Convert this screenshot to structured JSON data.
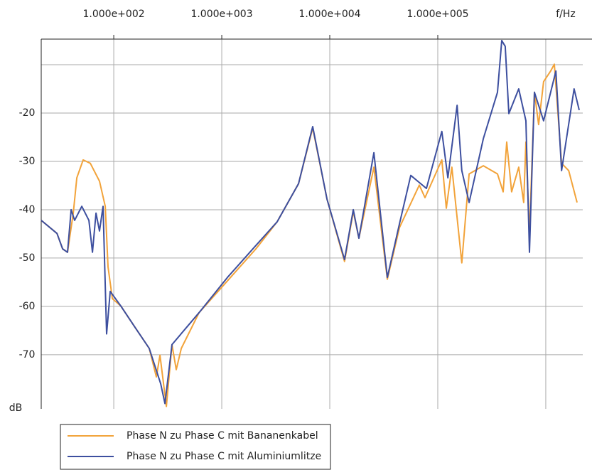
{
  "chart_data": {
    "type": "line",
    "xlabel": "f/Hz",
    "ylabel": "dB",
    "xscale": "log",
    "xlim": [
      21.3,
      2200000
    ],
    "ylim": [
      -81.2,
      -4.7
    ],
    "xticks": [
      {
        "value": 100,
        "label": "1.000e+002"
      },
      {
        "value": 1000,
        "label": "1.000e+003"
      },
      {
        "value": 10000,
        "label": "1.000e+004"
      },
      {
        "value": 100000,
        "label": "1.000e+005"
      }
    ],
    "xgrid": [
      1000000
    ],
    "yticks": [
      -70,
      -60,
      -50,
      -40,
      -30,
      -20
    ],
    "ygrid": [
      -10
    ],
    "grid": true,
    "series": [
      {
        "name": "Phase N zu Phase C mit Bananenkabel",
        "color": "#f2a33a",
        "x": [
          21.3,
          29.8,
          33.6,
          37.3,
          42.2,
          45.5,
          52.1,
          60.7,
          73.8,
          83.4,
          88.5,
          97.0,
          116,
          157,
          213,
          248,
          268,
          307,
          346,
          379,
          422,
          616,
          1130,
          2070,
          3260,
          5140,
          6950,
          9420,
          13700,
          16500,
          18600,
          25600,
          34100,
          44200,
          67500,
          76200,
          109000,
          120000,
          135000,
          167000,
          195000,
          264000,
          357000,
          403000,
          435000,
          483000,
          562000,
          625000,
          655000,
          706000,
          785000,
          859000,
          955000,
          1110000,
          1200000,
          1400000,
          1630000,
          1950000
        ],
        "values": [
          -42.2,
          -44.9,
          -48.1,
          -48.8,
          -40.7,
          -33.4,
          -29.7,
          -30.4,
          -34.1,
          -39.3,
          -51.8,
          -58.4,
          -59.9,
          -64.3,
          -68.7,
          -74.6,
          -70.1,
          -80.7,
          -67.9,
          -73.1,
          -68.7,
          -61.3,
          -54.7,
          -48.1,
          -42.5,
          -34.6,
          -23.1,
          -37.8,
          -50.7,
          -40.4,
          -45.9,
          -31.2,
          -54.4,
          -43.7,
          -34.9,
          -37.5,
          -29.7,
          -39.7,
          -31.2,
          -51.0,
          -32.6,
          -30.9,
          -32.6,
          -36.3,
          -26.0,
          -36.3,
          -31.2,
          -38.5,
          -26.0,
          -45.1,
          -15.7,
          -22.4,
          -13.5,
          -11.3,
          -9.9,
          -30.4,
          -31.9,
          -38.5
        ]
      },
      {
        "name": "Phase N zu Phase C mit Aluminiumlitze",
        "color": "#3d4f9f",
        "x": [
          21.3,
          29.8,
          33.6,
          37.3,
          40.3,
          43.4,
          50.6,
          58.9,
          63.5,
          68.5,
          73.8,
          79.6,
          85.9,
          92.7,
          116,
          157,
          213,
          272,
          298,
          346,
          616,
          1130,
          2070,
          3260,
          5140,
          6950,
          9420,
          13700,
          16500,
          18600,
          25600,
          34100,
          44200,
          56200,
          78500,
          109000,
          124000,
          151000,
          167000,
          195000,
          264000,
          357000,
          391000,
          421000,
          455000,
          562000,
          655000,
          706000,
          785000,
          955000,
          1240000,
          1400000,
          1830000,
          2040000
        ],
        "values": [
          -42.2,
          -44.9,
          -48.1,
          -48.8,
          -40.0,
          -42.2,
          -39.3,
          -42.2,
          -48.8,
          -40.7,
          -44.4,
          -39.3,
          -65.7,
          -56.9,
          -59.9,
          -64.3,
          -68.7,
          -76.0,
          -80.1,
          -67.9,
          -61.3,
          -54.0,
          -47.4,
          -42.5,
          -34.6,
          -22.8,
          -37.8,
          -50.3,
          -40.0,
          -45.9,
          -28.2,
          -54.0,
          -42.9,
          -32.9,
          -35.6,
          -23.8,
          -33.4,
          -18.4,
          -31.9,
          -38.5,
          -25.3,
          -15.7,
          -5.0,
          -6.2,
          -20.1,
          -15.0,
          -21.6,
          -48.8,
          -15.7,
          -21.6,
          -11.3,
          -31.9,
          -15.0,
          -19.4
        ]
      }
    ]
  }
}
